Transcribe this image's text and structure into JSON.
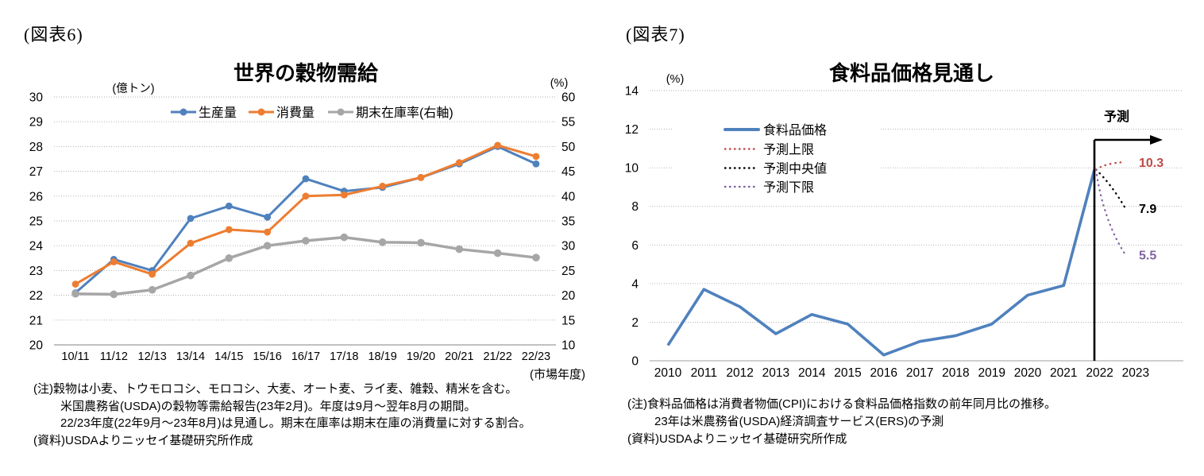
{
  "fig6": {
    "fig_label": "(図表6)",
    "title": "世界の穀物需給",
    "unit_left": "(億トン)",
    "unit_right": "(%)",
    "x_axis_note": "(市場年度)",
    "notes": {
      "line1": "(注)穀物は小麦、トウモロコシ、モロコシ、大麦、オート麦、ライ麦、雑穀、精米を含む。",
      "line2": "米国農務省(USDA)の穀物等需給報告(23年2月)。年度は9月～翌年8月の期間。",
      "line3": "22/23年度(22年9月～23年8月)は見通し。期末在庫率は期末在庫の消費量に対する割合。",
      "source": "(資料)USDAよりニッセイ基礎研究所作成"
    }
  },
  "fig7": {
    "fig_label": "(図表7)",
    "title": "食料品価格見通し",
    "unit": "(%)",
    "forecast_label": "予測",
    "notes": {
      "line1": "(注)食料品価格は消費者物価(CPI)における食料品価格指数の前年同月比の推移。",
      "line2": "23年は米農務省(USDA)経済調査サービス(ERS)の予測",
      "source": "(資料)USDAよりニッセイ基礎研究所作成"
    }
  },
  "chart_data": [
    {
      "id": "fig6",
      "type": "line",
      "title": "世界の穀物需給",
      "categories": [
        "10/11",
        "11/12",
        "12/13",
        "13/14",
        "14/15",
        "15/16",
        "16/17",
        "17/18",
        "18/19",
        "19/20",
        "20/21",
        "21/22",
        "22/23"
      ],
      "series": [
        {
          "name": "生産量",
          "axis": "left",
          "color": "#4F81BD",
          "marker": "circle",
          "values": [
            22.1,
            23.45,
            23.0,
            25.1,
            25.6,
            25.15,
            26.7,
            26.2,
            26.35,
            26.75,
            27.3,
            28.0,
            27.3
          ]
        },
        {
          "name": "消費量",
          "axis": "left",
          "color": "#ED7D31",
          "marker": "circle",
          "values": [
            22.45,
            23.35,
            22.85,
            24.1,
            24.65,
            24.55,
            26.0,
            26.05,
            26.4,
            26.75,
            27.35,
            28.05,
            27.6
          ]
        },
        {
          "name": "期末在庫率(右軸)",
          "axis": "right",
          "color": "#A6A6A6",
          "marker": "circle",
          "values": [
            20.3,
            20.2,
            21.1,
            24.0,
            27.5,
            30.0,
            31.0,
            31.7,
            30.7,
            30.6,
            29.3,
            28.5,
            27.6
          ]
        }
      ],
      "left_axis": {
        "label": "(億トン)",
        "min": 20,
        "max": 30,
        "tick_step": 1
      },
      "right_axis": {
        "label": "(%)",
        "min": 10,
        "max": 60,
        "tick_step": 5
      },
      "x_note": "(市場年度)",
      "grid": true,
      "legend_position": "top-center-inside"
    },
    {
      "id": "fig7",
      "type": "line",
      "title": "食料品価格見通し",
      "x": [
        2010,
        2011,
        2012,
        2013,
        2014,
        2015,
        2016,
        2017,
        2018,
        2019,
        2020,
        2021,
        2022,
        2023
      ],
      "series": [
        {
          "name": "食料品価格",
          "style": "solid",
          "color": "#4F81BD",
          "values": [
            0.8,
            3.7,
            2.8,
            1.4,
            2.4,
            1.9,
            0.3,
            1.0,
            1.3,
            1.9,
            3.4,
            3.9,
            9.9,
            null
          ]
        },
        {
          "name": "予測上限",
          "style": "dotted",
          "color": "#BE4B48",
          "end_label": "10.3",
          "values": [
            null,
            null,
            null,
            null,
            null,
            null,
            null,
            null,
            null,
            null,
            null,
            null,
            9.9,
            10.3
          ]
        },
        {
          "name": "予測中央値",
          "style": "dotted",
          "color": "#000000",
          "end_label": "7.9",
          "values": [
            null,
            null,
            null,
            null,
            null,
            null,
            null,
            null,
            null,
            null,
            null,
            null,
            9.9,
            7.9
          ]
        },
        {
          "name": "予測下限",
          "style": "dotted",
          "color": "#8064A2",
          "end_label": "5.5",
          "values": [
            null,
            null,
            null,
            null,
            null,
            null,
            null,
            null,
            null,
            null,
            null,
            null,
            9.9,
            5.5
          ]
        }
      ],
      "y_axis": {
        "label": "(%)",
        "min": 0,
        "max": 14,
        "tick_step": 2
      },
      "forecast": {
        "label": "予測",
        "divider_x": 2022
      },
      "grid": true,
      "legend_position": "upper-left-inside"
    }
  ],
  "colors": {
    "production_blue": "#4F81BD",
    "consumption_orange": "#ED7D31",
    "stock_gray": "#A6A6A6",
    "forecast_upper_red": "#BE4B48",
    "forecast_median_black": "#000000",
    "forecast_lower_purple": "#8064A2",
    "gridline": "#ABABAB"
  }
}
